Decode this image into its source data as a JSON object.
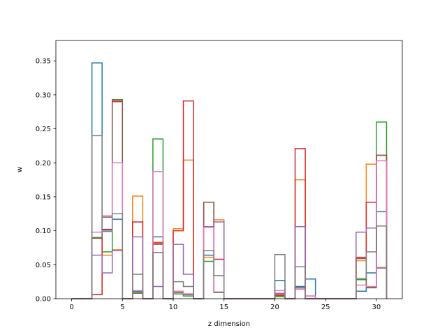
{
  "chart_data": {
    "type": "step-histogram",
    "xlabel": "z dimension",
    "ylabel": "w",
    "xlim": [
      -1.55,
      32.55
    ],
    "ylim": [
      0,
      0.38
    ],
    "xticks": [
      0,
      5,
      10,
      15,
      20,
      25,
      30
    ],
    "yticks": [
      0.0,
      0.05,
      0.1,
      0.15,
      0.2,
      0.25,
      0.3,
      0.35
    ],
    "bin_edges": [
      0,
      1,
      2,
      3,
      4,
      5,
      6,
      7,
      8,
      9,
      10,
      11,
      12,
      13,
      14,
      15,
      16,
      17,
      18,
      19,
      20,
      21,
      22,
      23,
      24,
      25,
      26,
      27,
      28,
      29,
      30,
      31
    ],
    "series": [
      {
        "color": "#1f77b4",
        "values": [
          0,
          0,
          0.347,
          0.101,
          0.117,
          0,
          0.011,
          0,
          0.091,
          0,
          0.009,
          0.006,
          0,
          0.064,
          0.01,
          0,
          0,
          0,
          0,
          0,
          0.027,
          0,
          0.018,
          0.029,
          0,
          0,
          0,
          0,
          0.011,
          0.038,
          0.128,
          0
        ]
      },
      {
        "color": "#ff7f0e",
        "values": [
          0,
          0,
          0.006,
          0.064,
          0.072,
          0,
          0.151,
          0,
          0.083,
          0,
          0.103,
          0.204,
          0,
          0.061,
          0.116,
          0,
          0,
          0,
          0,
          0,
          0.004,
          0,
          0.175,
          0,
          0,
          0,
          0,
          0,
          0.056,
          0.198,
          0.046,
          0
        ]
      },
      {
        "color": "#2ca02c",
        "values": [
          0,
          0,
          0.09,
          0.069,
          0.293,
          0,
          0.008,
          0,
          0.235,
          0,
          0.007,
          0.004,
          0,
          0.055,
          0.009,
          0,
          0,
          0,
          0,
          0,
          0.003,
          0,
          0.014,
          0,
          0,
          0,
          0,
          0,
          0.028,
          0.016,
          0.26,
          0
        ]
      },
      {
        "color": "#d62728",
        "values": [
          0,
          0,
          0.006,
          0.102,
          0.29,
          0,
          0.113,
          0,
          0.082,
          0,
          0.1,
          0.291,
          0,
          0.142,
          0.058,
          0,
          0,
          0,
          0,
          0,
          0.005,
          0,
          0.221,
          0,
          0,
          0,
          0,
          0,
          0.061,
          0.142,
          0.211,
          0
        ]
      },
      {
        "color": "#9467bd",
        "values": [
          0,
          0,
          0.064,
          0.038,
          0.071,
          0,
          0.091,
          0,
          0.018,
          0,
          0.08,
          0.036,
          0,
          0.106,
          0.113,
          0,
          0,
          0,
          0,
          0,
          0.008,
          0,
          0.106,
          0,
          0,
          0,
          0,
          0,
          0.098,
          0.104,
          0.045,
          0
        ]
      },
      {
        "color": "#8c564b",
        "values": [
          0,
          0,
          0.089,
          0.12,
          0.292,
          0,
          0.009,
          0,
          0.08,
          0,
          0.009,
          0.006,
          0,
          0.142,
          0.01,
          0,
          0,
          0,
          0,
          0,
          0.006,
          0,
          0.016,
          0.004,
          0,
          0,
          0,
          0,
          0.059,
          0.017,
          0.211,
          0
        ]
      },
      {
        "color": "#e377c2",
        "values": [
          0,
          0,
          0.098,
          0.122,
          0.2,
          0,
          0.012,
          0,
          0.187,
          0,
          0.011,
          0.007,
          0,
          0.105,
          0.01,
          0,
          0,
          0,
          0,
          0,
          0.012,
          0,
          0.014,
          0.004,
          0,
          0,
          0,
          0,
          0.02,
          0.018,
          0.203,
          0
        ]
      },
      {
        "color": "#7f7f7f",
        "values": [
          0,
          0,
          0.24,
          0.099,
          0.125,
          0,
          0.036,
          0,
          0.068,
          0,
          0.025,
          0.018,
          0,
          0.071,
          0.034,
          0,
          0,
          0,
          0,
          0,
          0.065,
          0,
          0.047,
          0,
          0,
          0,
          0,
          0,
          0.03,
          0.069,
          0.107,
          0
        ]
      }
    ]
  }
}
